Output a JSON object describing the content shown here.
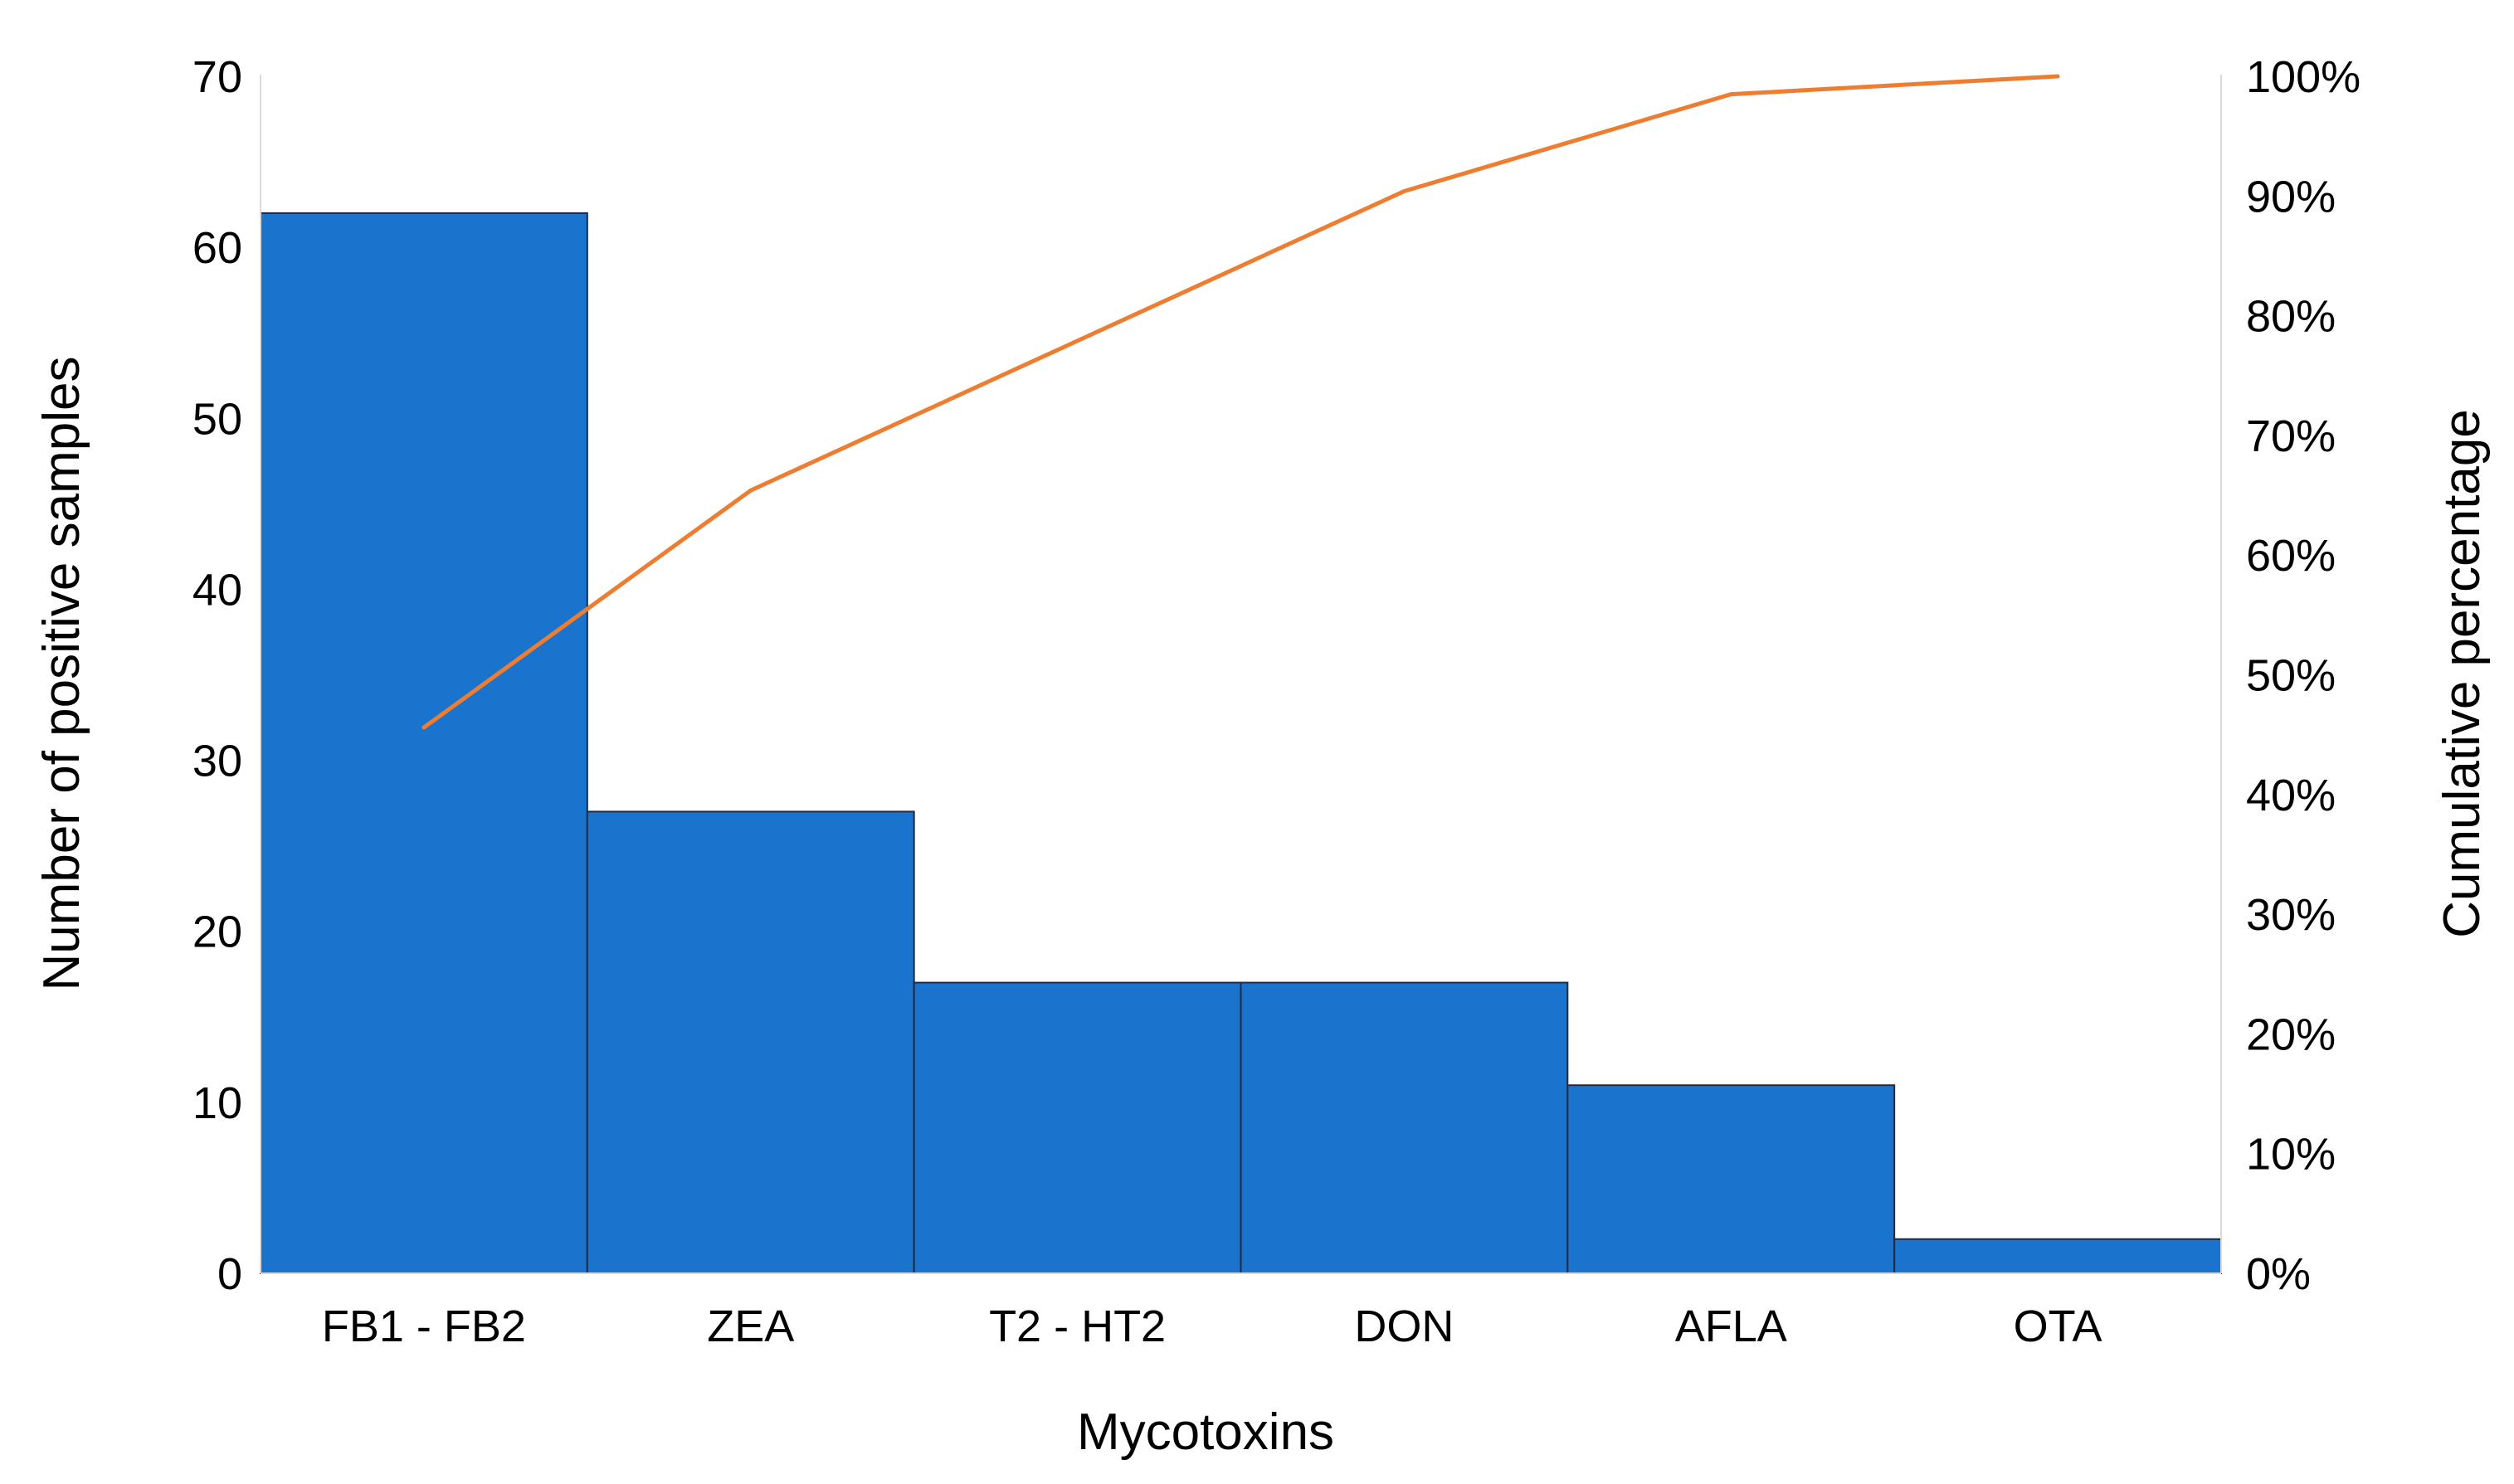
{
  "chart_data": {
    "type": "bar",
    "categories": [
      "FB1 - FB2",
      "ZEA",
      "T2 - HT2",
      "DON",
      "AFLA",
      "OTA"
    ],
    "series": [
      {
        "type": "bar",
        "values": [
          62,
          27,
          17,
          17,
          11,
          2
        ],
        "color": "#1a73cd"
      },
      {
        "type": "line",
        "axis": "right",
        "values": [
          45.6,
          65.4,
          77.9,
          90.4,
          98.5,
          100
        ],
        "color": "#ed7d31"
      }
    ],
    "title": "",
    "xlabel": "Mycotoxins",
    "ylabel": "Number of positive samples",
    "y2label": "Cumulative percentage",
    "ylim": [
      0,
      70
    ],
    "y2lim": [
      0,
      100
    ],
    "yticks": [
      "0",
      "10",
      "20",
      "30",
      "40",
      "50",
      "60",
      "70"
    ],
    "y2ticks": [
      "0%",
      "10%",
      "20%",
      "30%",
      "40%",
      "50%",
      "60%",
      "70%",
      "80%",
      "90%",
      "100%"
    ],
    "grid": false,
    "legend": "none",
    "colors": {
      "bar": "#1a73cd",
      "bar_edge": "#1f2a44",
      "line": "#ed7d31",
      "axis": "#d9d9d9",
      "text": "#000000"
    }
  }
}
